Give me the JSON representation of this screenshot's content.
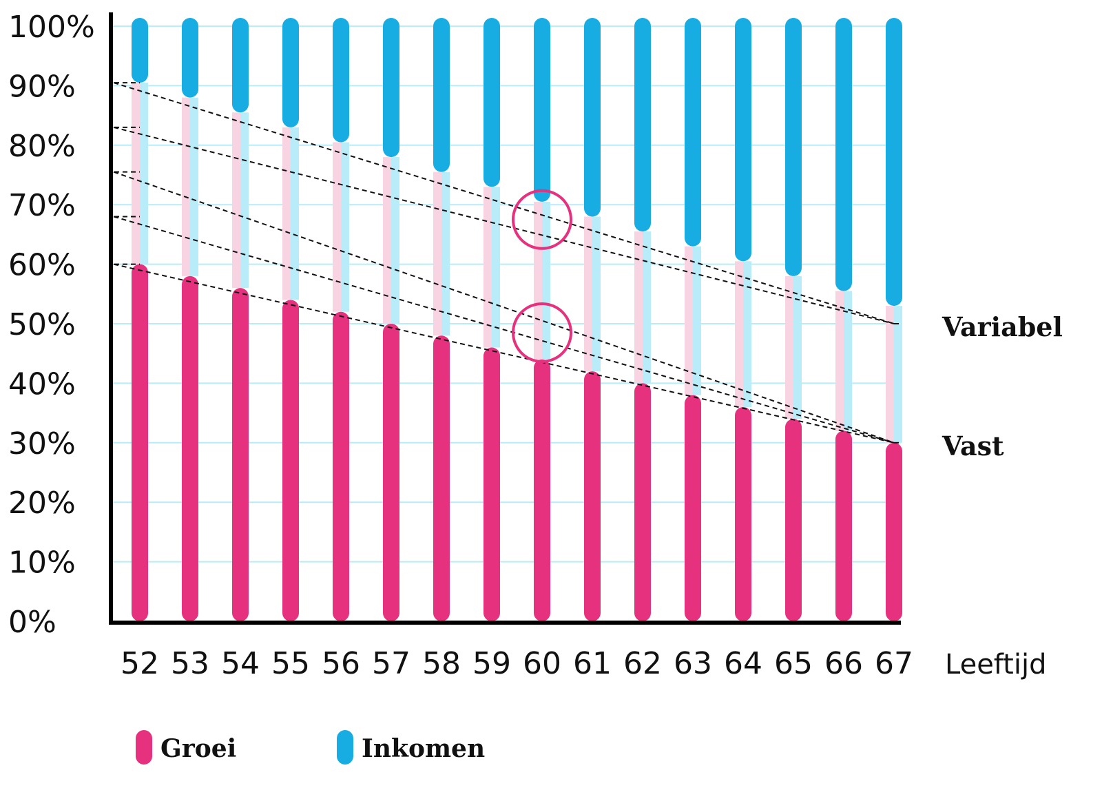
{
  "chart_data": {
    "type": "bar",
    "stacked": true,
    "xlabel": "Leeftijd",
    "categories": [
      "52",
      "53",
      "54",
      "55",
      "56",
      "57",
      "58",
      "59",
      "60",
      "61",
      "62",
      "63",
      "64",
      "65",
      "66",
      "67"
    ],
    "y_ticks": [
      "0%",
      "10%",
      "20%",
      "30%",
      "40%",
      "50%",
      "60%",
      "70%",
      "80%",
      "90%",
      "100%"
    ],
    "ylim": [
      0,
      100
    ],
    "grid": true,
    "series": [
      {
        "name": "Groei",
        "color": "#e6317e",
        "values": [
          60,
          58,
          56,
          54,
          52,
          50,
          48,
          46,
          44,
          42,
          40,
          38,
          36,
          34,
          32,
          30
        ]
      },
      {
        "name": "Inkomen",
        "color": "#17ade3",
        "values": [
          9.5,
          12,
          14.5,
          17,
          19.5,
          22,
          24.5,
          27,
          29.5,
          32,
          34.5,
          37,
          39.5,
          42,
          44.5,
          47
        ]
      }
    ],
    "band_light_colors": {
      "pink": "#f8d3e2",
      "blue": "#b7ecf8"
    },
    "guide_lines": [
      {
        "from": [
          52,
          90.5
        ],
        "to": [
          67,
          50
        ]
      },
      {
        "from": [
          52,
          83
        ],
        "to": [
          67,
          50
        ]
      },
      {
        "from": [
          52,
          75.5
        ],
        "to": [
          67,
          30
        ]
      },
      {
        "from": [
          52,
          68
        ],
        "to": [
          67,
          30
        ]
      },
      {
        "from": [
          52,
          60
        ],
        "to": [
          67,
          30
        ]
      }
    ],
    "end_labels": [
      {
        "text": "Variabel",
        "y": 50
      },
      {
        "text": "Vast",
        "y": 30
      }
    ],
    "highlight_circles": [
      {
        "x": 60,
        "y": 67.5
      },
      {
        "x": 60,
        "y": 48.5
      }
    ],
    "legend_position": "bottom-left"
  }
}
